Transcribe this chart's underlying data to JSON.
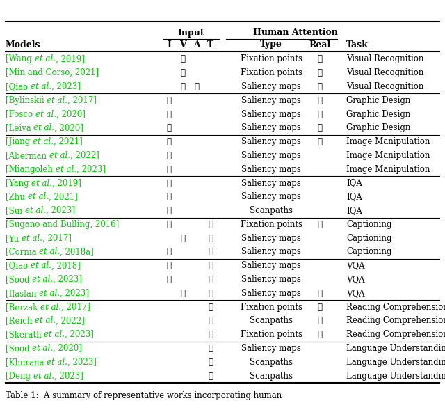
{
  "fig_width": 6.4,
  "fig_height": 6.02,
  "background_color": "#ffffff",
  "link_color": "#00cc00",
  "text_color": "#000000",
  "header1": "Input",
  "header2": "Human Attention",
  "col_models": "Models",
  "col_IVAT": [
    "I",
    "V",
    "A",
    "T"
  ],
  "col_type": "Type",
  "col_real": "Real",
  "col_task": "Task",
  "checkmark": "✓",
  "groups": [
    {
      "task": "Visual Recognition",
      "rows": [
        {
          "model": "[Wang {et al.}, 2019]",
          "I": false,
          "V": true,
          "A": false,
          "T": false,
          "type": "Fixation points",
          "real": true
        },
        {
          "model": "[Min and Corso, 2021]",
          "I": false,
          "V": true,
          "A": false,
          "T": false,
          "type": "Fixation points",
          "real": true
        },
        {
          "model": "[Qiao {et al.}, 2023]",
          "I": false,
          "V": true,
          "A": true,
          "T": false,
          "type": "Saliency maps",
          "real": true
        }
      ]
    },
    {
      "task": "Graphic Design",
      "rows": [
        {
          "model": "[Bylinskii {et al.}, 2017]",
          "I": true,
          "V": false,
          "A": false,
          "T": false,
          "type": "Saliency maps",
          "real": true
        },
        {
          "model": "[Fosco {et al.}, 2020]",
          "I": true,
          "V": false,
          "A": false,
          "T": false,
          "type": "Saliency maps",
          "real": true
        },
        {
          "model": "[Leiva {et al.}, 2020]",
          "I": true,
          "V": false,
          "A": false,
          "T": false,
          "type": "Saliency maps",
          "real": true
        }
      ]
    },
    {
      "task": "Image Manipulation",
      "rows": [
        {
          "model": "[Jiang {et al.}, 2021]",
          "I": true,
          "V": false,
          "A": false,
          "T": false,
          "type": "Saliency maps",
          "real": true
        },
        {
          "model": "[Aberman {et al.}, 2022]",
          "I": true,
          "V": false,
          "A": false,
          "T": false,
          "type": "Saliency maps",
          "real": false
        },
        {
          "model": "[Miangoleh {et al.}, 2023]",
          "I": true,
          "V": false,
          "A": false,
          "T": false,
          "type": "Saliency maps",
          "real": false
        }
      ]
    },
    {
      "task": "IQA",
      "rows": [
        {
          "model": "[Yang {et al.}, 2019]",
          "I": true,
          "V": false,
          "A": false,
          "T": false,
          "type": "Saliency maps",
          "real": false
        },
        {
          "model": "[Zhu {et al.}, 2021]",
          "I": true,
          "V": false,
          "A": false,
          "T": false,
          "type": "Saliency maps",
          "real": false
        },
        {
          "model": "[Sui {et al.}, 2023]",
          "I": true,
          "V": false,
          "A": false,
          "T": false,
          "type": "Scanpaths",
          "real": false
        }
      ]
    },
    {
      "task": "Captioning",
      "rows": [
        {
          "model": "[Sugano and Bulling, 2016]",
          "I": true,
          "V": false,
          "A": false,
          "T": true,
          "type": "Fixation points",
          "real": true
        },
        {
          "model": "[Yu {et al.}, 2017]",
          "I": false,
          "V": true,
          "A": false,
          "T": true,
          "type": "Saliency maps",
          "real": false
        },
        {
          "model": "[Cornia {et al.}, 2018a]",
          "I": true,
          "V": false,
          "A": false,
          "T": true,
          "type": "Saliency maps",
          "real": false
        }
      ]
    },
    {
      "task": "VQA",
      "rows": [
        {
          "model": "[Qiao {et al.}, 2018]",
          "I": true,
          "V": false,
          "A": false,
          "T": true,
          "type": "Saliency maps",
          "real": false
        },
        {
          "model": "[Sood {et al.}, 2023]",
          "I": true,
          "V": false,
          "A": false,
          "T": true,
          "type": "Saliency maps",
          "real": false
        },
        {
          "model": "[Ilaslan {et al.}, 2023]",
          "I": false,
          "V": true,
          "A": false,
          "T": true,
          "type": "Saliency maps",
          "real": true
        }
      ]
    },
    {
      "task": "Reading Comprehension",
      "rows": [
        {
          "model": "[Berzak {et al.}, 2017]",
          "I": false,
          "V": false,
          "A": false,
          "T": true,
          "type": "Fixation points",
          "real": true
        },
        {
          "model": "[Reich {et al.}, 2022]",
          "I": false,
          "V": false,
          "A": false,
          "T": true,
          "type": "Scanpaths",
          "real": true
        },
        {
          "model": "[Skerath {et al.}, 2023]",
          "I": false,
          "V": false,
          "A": false,
          "T": true,
          "type": "Fixation points",
          "real": true
        }
      ]
    },
    {
      "task": "Language Understanding",
      "rows": [
        {
          "model": "[Sood {et al.}, 2020]",
          "I": false,
          "V": false,
          "A": false,
          "T": true,
          "type": "Saliency maps",
          "real": false
        },
        {
          "model": "[Khurana {et al.}, 2023]",
          "I": false,
          "V": false,
          "A": false,
          "T": true,
          "type": "Scanpaths",
          "real": false
        },
        {
          "model": "[Deng {et al.}, 2023]",
          "I": false,
          "V": false,
          "A": false,
          "T": true,
          "type": "Scanpaths",
          "real": false
        }
      ]
    }
  ],
  "footer": "Table 1:  A summary of representative works incorporating human"
}
